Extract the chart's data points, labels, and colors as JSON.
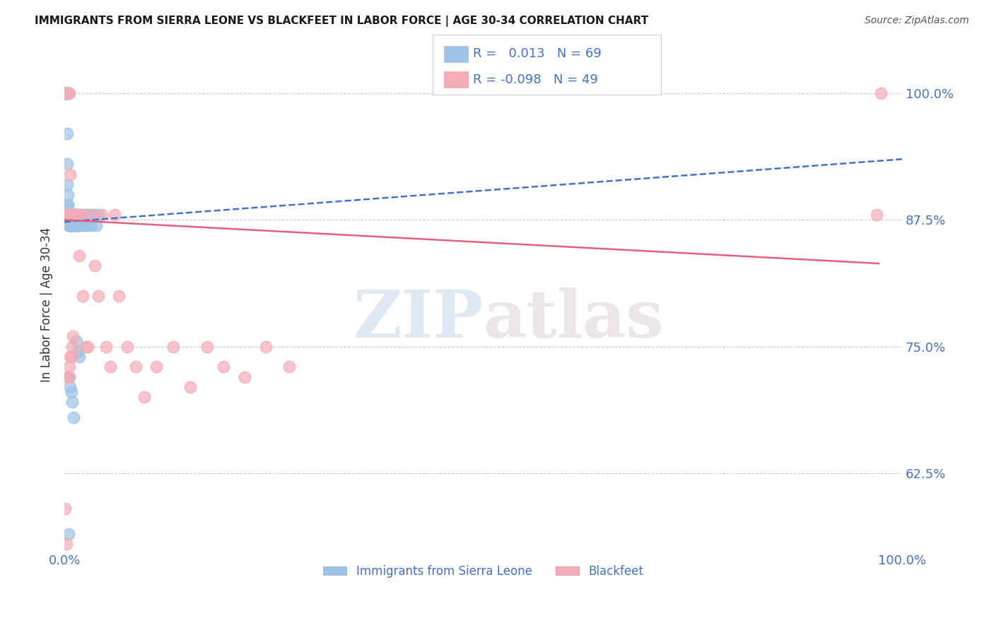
{
  "title": "IMMIGRANTS FROM SIERRA LEONE VS BLACKFEET IN LABOR FORCE | AGE 30-34 CORRELATION CHART",
  "source": "Source: ZipAtlas.com",
  "ylabel": "In Labor Force | Age 30-34",
  "xlim": [
    0.0,
    1.0
  ],
  "ylim": [
    0.548,
    1.035
  ],
  "yticks": [
    0.625,
    0.75,
    0.875,
    1.0
  ],
  "ytick_labels": [
    "62.5%",
    "75.0%",
    "87.5%",
    "100.0%"
  ],
  "xtick_labels": [
    "0.0%",
    "100.0%"
  ],
  "xticks": [
    0.0,
    1.0
  ],
  "blue_R": 0.013,
  "blue_N": 69,
  "pink_R": -0.098,
  "pink_N": 49,
  "legend_blue": "Immigrants from Sierra Leone",
  "legend_pink": "Blackfeet",
  "accent_color": "#4472c4",
  "blue_color": "#9dc3e6",
  "blue_dark": "#2e5fa3",
  "pink_color": "#f4acb7",
  "pink_dark": "#c9547a",
  "blue_trend_color": "#4472c4",
  "pink_trend_color": "#e06080",
  "blue_trend_start_y": 0.873,
  "blue_trend_end_y": 0.935,
  "pink_trend_start_y": 0.875,
  "pink_trend_end_y": 0.832,
  "pink_trend_end_x": 0.972,
  "watermark_zip": "ZIP",
  "watermark_atlas": "atlas",
  "background_color": "#ffffff",
  "blue_x": [
    0.001,
    0.001,
    0.001,
    0.002,
    0.002,
    0.002,
    0.002,
    0.003,
    0.003,
    0.003,
    0.003,
    0.003,
    0.003,
    0.004,
    0.004,
    0.004,
    0.004,
    0.004,
    0.005,
    0.005,
    0.005,
    0.005,
    0.006,
    0.006,
    0.006,
    0.006,
    0.007,
    0.007,
    0.007,
    0.008,
    0.008,
    0.008,
    0.009,
    0.009,
    0.01,
    0.01,
    0.01,
    0.011,
    0.011,
    0.012,
    0.012,
    0.013,
    0.013,
    0.014,
    0.015,
    0.015,
    0.016,
    0.017,
    0.018,
    0.019,
    0.02,
    0.022,
    0.024,
    0.026,
    0.028,
    0.03,
    0.032,
    0.035,
    0.038,
    0.04,
    0.014,
    0.016,
    0.018,
    0.005,
    0.006,
    0.007,
    0.008,
    0.009,
    0.011
  ],
  "blue_y": [
    1.0,
    1.0,
    1.0,
    1.0,
    1.0,
    1.0,
    1.0,
    1.0,
    1.0,
    1.0,
    0.96,
    0.93,
    0.91,
    0.9,
    0.89,
    0.89,
    0.88,
    0.88,
    0.88,
    0.88,
    0.88,
    0.87,
    0.87,
    0.87,
    0.87,
    0.88,
    0.88,
    0.87,
    0.87,
    0.87,
    0.87,
    0.87,
    0.87,
    0.88,
    0.88,
    0.87,
    0.87,
    0.88,
    0.87,
    0.87,
    0.88,
    0.87,
    0.88,
    0.87,
    0.87,
    0.88,
    0.87,
    0.88,
    0.87,
    0.88,
    0.87,
    0.88,
    0.87,
    0.88,
    0.87,
    0.88,
    0.87,
    0.88,
    0.87,
    0.88,
    0.755,
    0.745,
    0.74,
    0.565,
    0.72,
    0.71,
    0.705,
    0.695,
    0.68
  ],
  "pink_x": [
    0.001,
    0.002,
    0.003,
    0.004,
    0.005,
    0.006,
    0.007,
    0.008,
    0.009,
    0.01,
    0.012,
    0.014,
    0.016,
    0.018,
    0.02,
    0.022,
    0.025,
    0.028,
    0.032,
    0.036,
    0.04,
    0.045,
    0.05,
    0.055,
    0.06,
    0.065,
    0.075,
    0.085,
    0.095,
    0.11,
    0.13,
    0.15,
    0.17,
    0.19,
    0.215,
    0.24,
    0.268,
    0.002,
    0.003,
    0.004,
    0.005,
    0.006,
    0.007,
    0.008,
    0.009,
    0.01,
    0.97,
    0.975,
    0.002
  ],
  "pink_y": [
    0.59,
    0.88,
    0.88,
    1.0,
    1.0,
    1.0,
    0.92,
    0.88,
    0.88,
    0.88,
    0.88,
    0.88,
    0.88,
    0.84,
    0.88,
    0.8,
    0.75,
    0.75,
    0.88,
    0.83,
    0.8,
    0.88,
    0.75,
    0.73,
    0.88,
    0.8,
    0.75,
    0.73,
    0.7,
    0.73,
    0.75,
    0.71,
    0.75,
    0.73,
    0.72,
    0.75,
    0.73,
    0.88,
    0.72,
    0.72,
    0.72,
    0.73,
    0.74,
    0.74,
    0.75,
    0.76,
    0.88,
    1.0,
    0.555
  ]
}
